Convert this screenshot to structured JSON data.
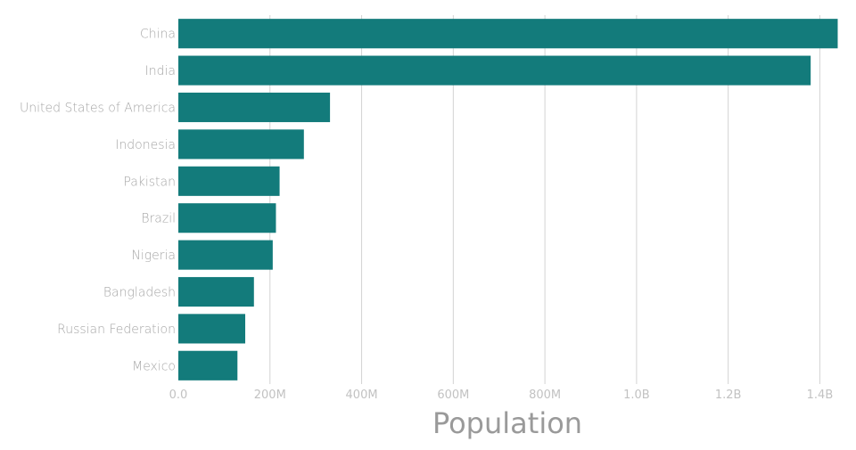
{
  "chart_data": {
    "type": "bar",
    "orientation": "horizontal",
    "categories": [
      "China",
      "India",
      "United States of America",
      "Indonesia",
      "Pakistan",
      "Brazil",
      "Nigeria",
      "Bangladesh",
      "Russian Federation",
      "Mexico"
    ],
    "values": [
      1439000000,
      1380000000,
      331000000,
      274000000,
      221000000,
      213000000,
      206000000,
      165000000,
      146000000,
      129000000
    ],
    "xlabel": "Population",
    "ylabel": "",
    "xlim": [
      0,
      1440000000
    ],
    "x_ticks": [
      0,
      200000000,
      400000000,
      600000000,
      800000000,
      1000000000,
      1200000000,
      1400000000
    ],
    "x_tick_labels": [
      "0.0",
      "200M",
      "400M",
      "600M",
      "800M",
      "1.0B",
      "1.2B",
      "1.4B"
    ],
    "grid": "vertical",
    "bar_color": "#137b7b"
  }
}
